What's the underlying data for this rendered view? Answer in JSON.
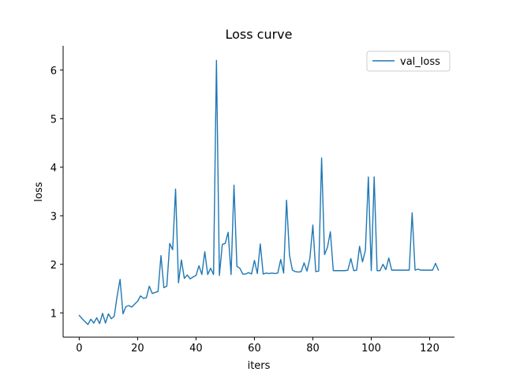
{
  "chart_data": {
    "type": "line",
    "title": "Loss curve",
    "xlabel": "iters",
    "ylabel": "loss",
    "xlim": [
      -5.5,
      128.5
    ],
    "ylim": [
      0.5,
      6.5
    ],
    "xticks": [
      0,
      20,
      40,
      60,
      80,
      100,
      120
    ],
    "yticks": [
      1,
      2,
      3,
      4,
      5,
      6
    ],
    "grid": false,
    "legend_position": "top-right",
    "series": [
      {
        "name": "val_loss",
        "color": "#1f77b4",
        "x": [
          0,
          1,
          2,
          3,
          4,
          5,
          6,
          7,
          8,
          9,
          10,
          11,
          12,
          13,
          14,
          15,
          16,
          17,
          18,
          19,
          20,
          21,
          22,
          23,
          24,
          25,
          26,
          27,
          28,
          29,
          30,
          31,
          32,
          33,
          34,
          35,
          36,
          37,
          38,
          39,
          40,
          41,
          42,
          43,
          44,
          45,
          46,
          47,
          48,
          49,
          50,
          51,
          52,
          53,
          54,
          55,
          56,
          57,
          58,
          59,
          60,
          61,
          62,
          63,
          64,
          65,
          66,
          67,
          68,
          69,
          70,
          71,
          72,
          73,
          74,
          75,
          76,
          77,
          78,
          79,
          80,
          81,
          82,
          83,
          84,
          85,
          86,
          87,
          88,
          89,
          90,
          91,
          92,
          93,
          94,
          95,
          96,
          97,
          98,
          99,
          100,
          101,
          102,
          103,
          104,
          105,
          106,
          107,
          108,
          109,
          110,
          111,
          112,
          113,
          114,
          115,
          116,
          117,
          118,
          119,
          120,
          121,
          122,
          123
        ],
        "y": [
          0.95,
          0.88,
          0.82,
          0.76,
          0.87,
          0.79,
          0.9,
          0.78,
          0.99,
          0.79,
          0.98,
          0.88,
          0.93,
          1.35,
          1.69,
          0.98,
          1.13,
          1.15,
          1.12,
          1.18,
          1.24,
          1.35,
          1.3,
          1.31,
          1.55,
          1.4,
          1.42,
          1.44,
          2.18,
          1.52,
          1.55,
          2.43,
          2.3,
          3.55,
          1.62,
          2.09,
          1.71,
          1.78,
          1.7,
          1.74,
          1.77,
          1.97,
          1.79,
          2.26,
          1.79,
          1.92,
          1.79,
          6.2,
          1.77,
          2.41,
          2.43,
          2.66,
          1.79,
          3.63,
          1.96,
          1.92,
          1.8,
          1.8,
          1.83,
          1.8,
          2.08,
          1.81,
          2.42,
          1.8,
          1.82,
          1.81,
          1.82,
          1.81,
          1.82,
          2.1,
          1.82,
          3.32,
          2.19,
          1.88,
          1.85,
          1.84,
          1.85,
          2.03,
          1.86,
          2.13,
          2.81,
          1.85,
          1.86,
          4.19,
          2.2,
          2.35,
          2.67,
          1.87,
          1.87,
          1.87,
          1.87,
          1.87,
          1.88,
          2.12,
          1.87,
          1.88,
          2.37,
          2.05,
          2.29,
          3.8,
          1.87,
          3.8,
          1.87,
          1.87,
          2.0,
          1.89,
          2.13,
          1.88,
          1.88,
          1.88,
          1.88,
          1.88,
          1.88,
          1.88,
          3.06,
          1.88,
          1.9,
          1.88,
          1.88,
          1.88,
          1.88,
          1.88,
          2.02,
          1.88
        ]
      }
    ]
  }
}
